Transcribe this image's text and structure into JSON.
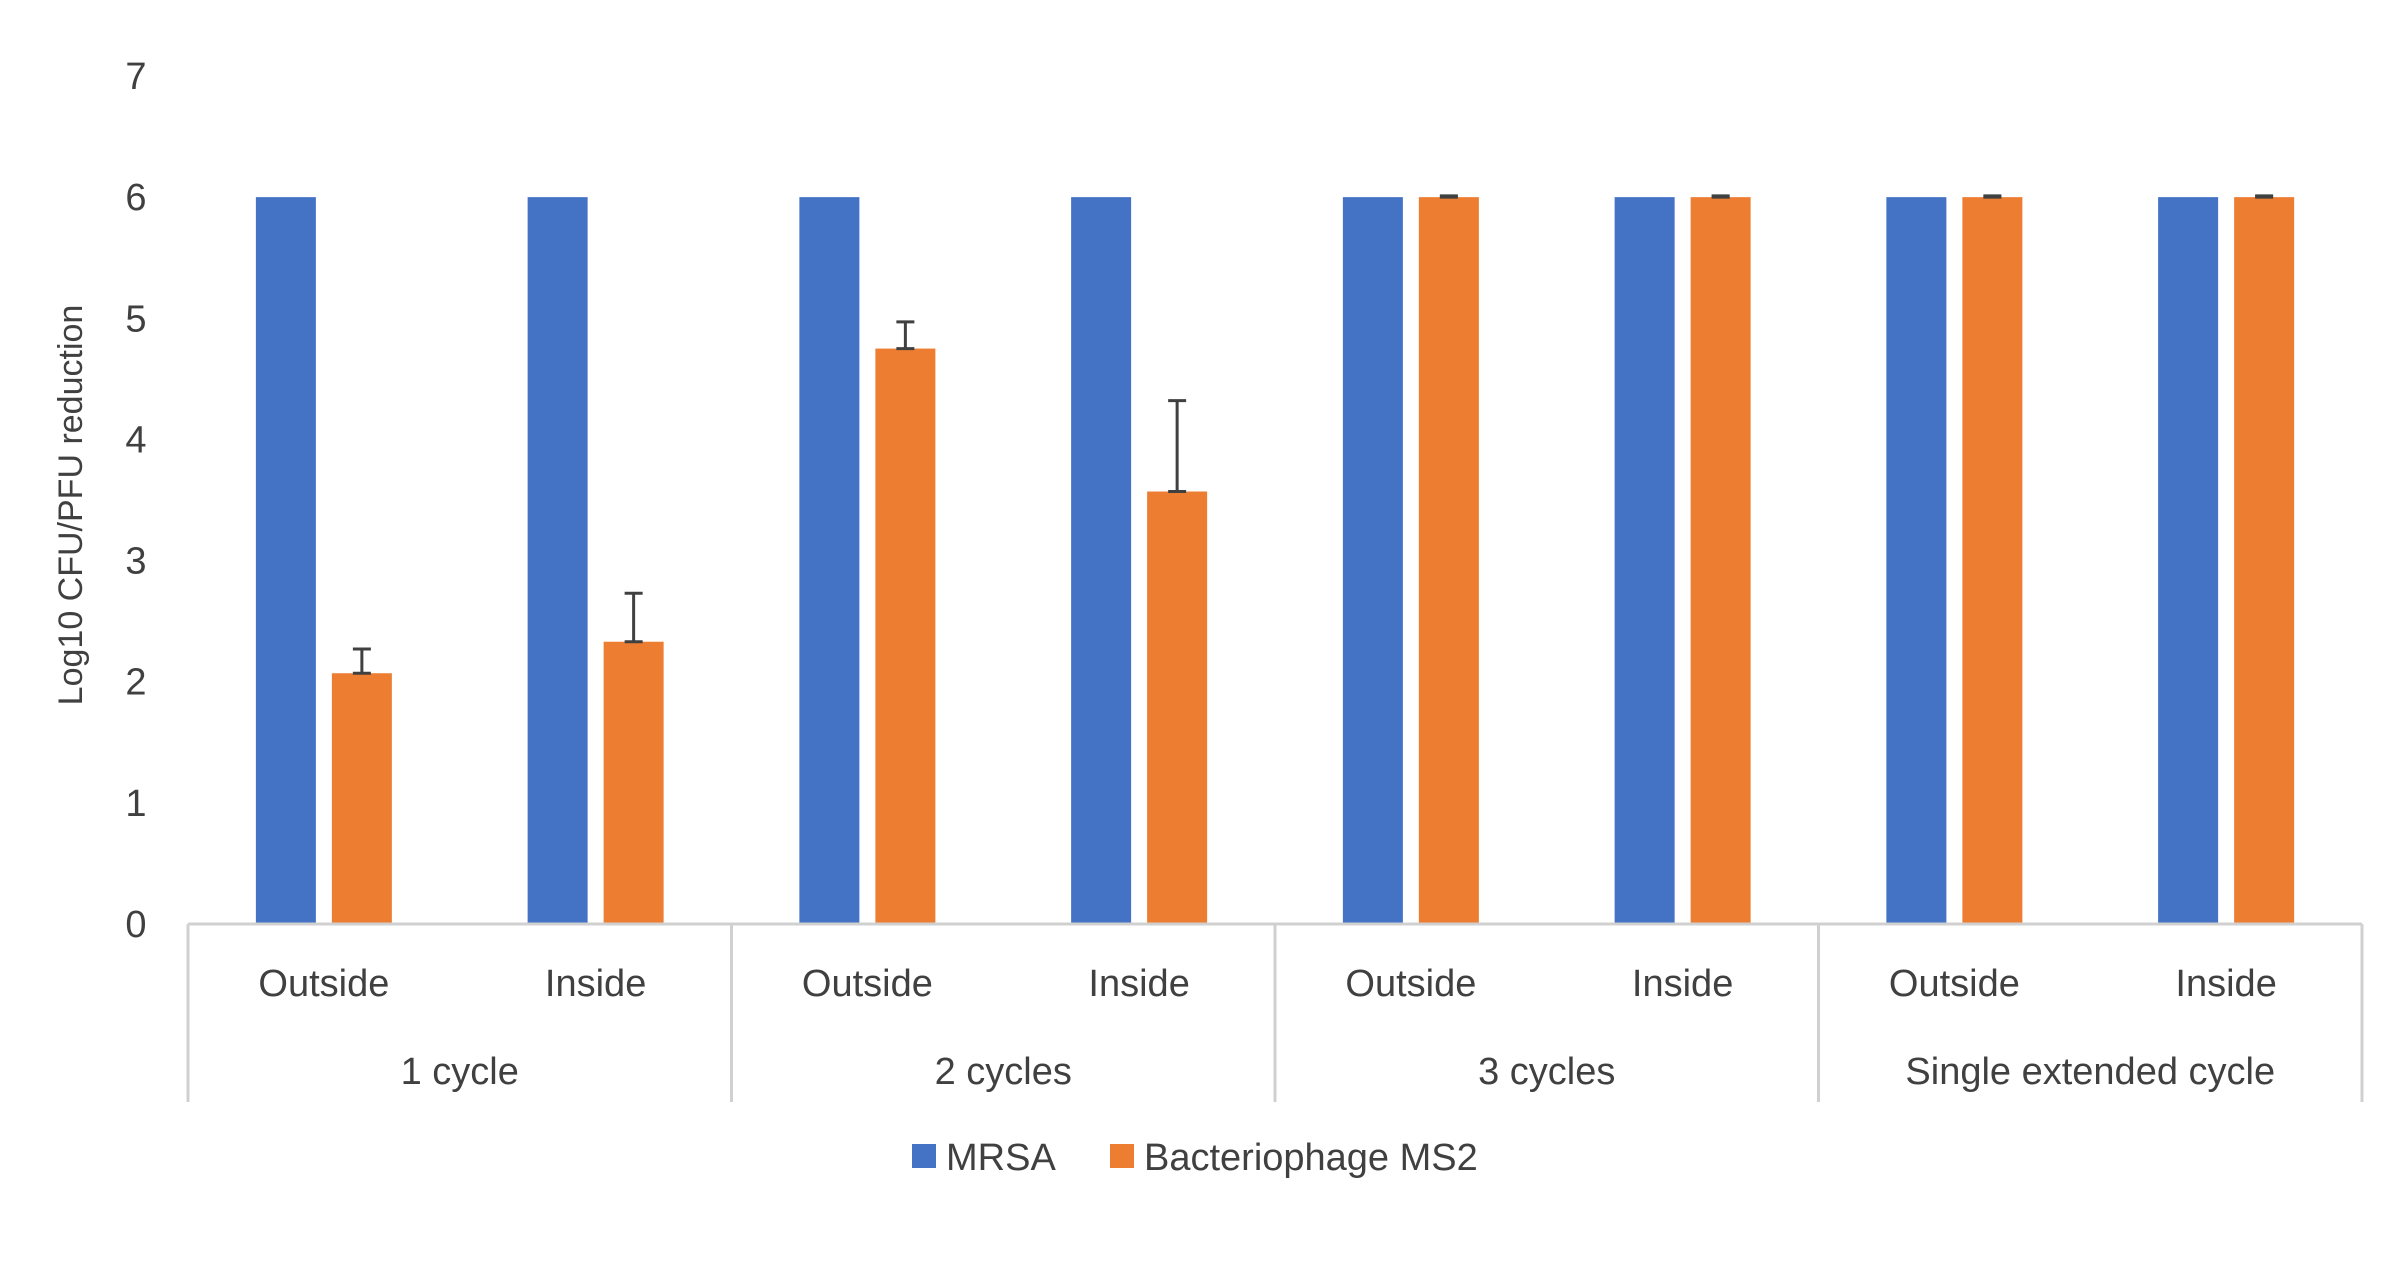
{
  "chart_data": {
    "type": "bar",
    "title": "",
    "xlabel": "",
    "ylabel": "Log10 CFU/PFU reduction",
    "ylim": [
      0,
      7
    ],
    "yticks": [
      "0",
      "1",
      "2",
      "3",
      "4",
      "5",
      "6",
      "7"
    ],
    "groups": [
      {
        "label": "1 cycle",
        "categories": [
          "Outside",
          "Inside"
        ]
      },
      {
        "label": "2 cycles",
        "categories": [
          "Outside",
          "Inside"
        ]
      },
      {
        "label": "3 cycles",
        "categories": [
          "Outside",
          "Inside"
        ]
      },
      {
        "label": "Single extended cycle",
        "categories": [
          "Outside",
          "Inside"
        ]
      }
    ],
    "series": [
      {
        "name": "MRSA",
        "color": "#4472C4",
        "values": [
          6,
          6,
          6,
          6,
          6,
          6,
          6,
          6
        ],
        "errors": [
          0,
          0,
          0,
          0,
          0,
          0,
          0,
          0
        ]
      },
      {
        "name": "Bacteriophage MS2",
        "color": "#ED7D31",
        "values": [
          2.07,
          2.33,
          4.75,
          3.57,
          6,
          6,
          6,
          6
        ],
        "errors": [
          0.2,
          0.4,
          0.22,
          0.75,
          0.01,
          0.01,
          0.01,
          0.01
        ]
      }
    ],
    "legend_position": "bottom",
    "grid": false
  }
}
